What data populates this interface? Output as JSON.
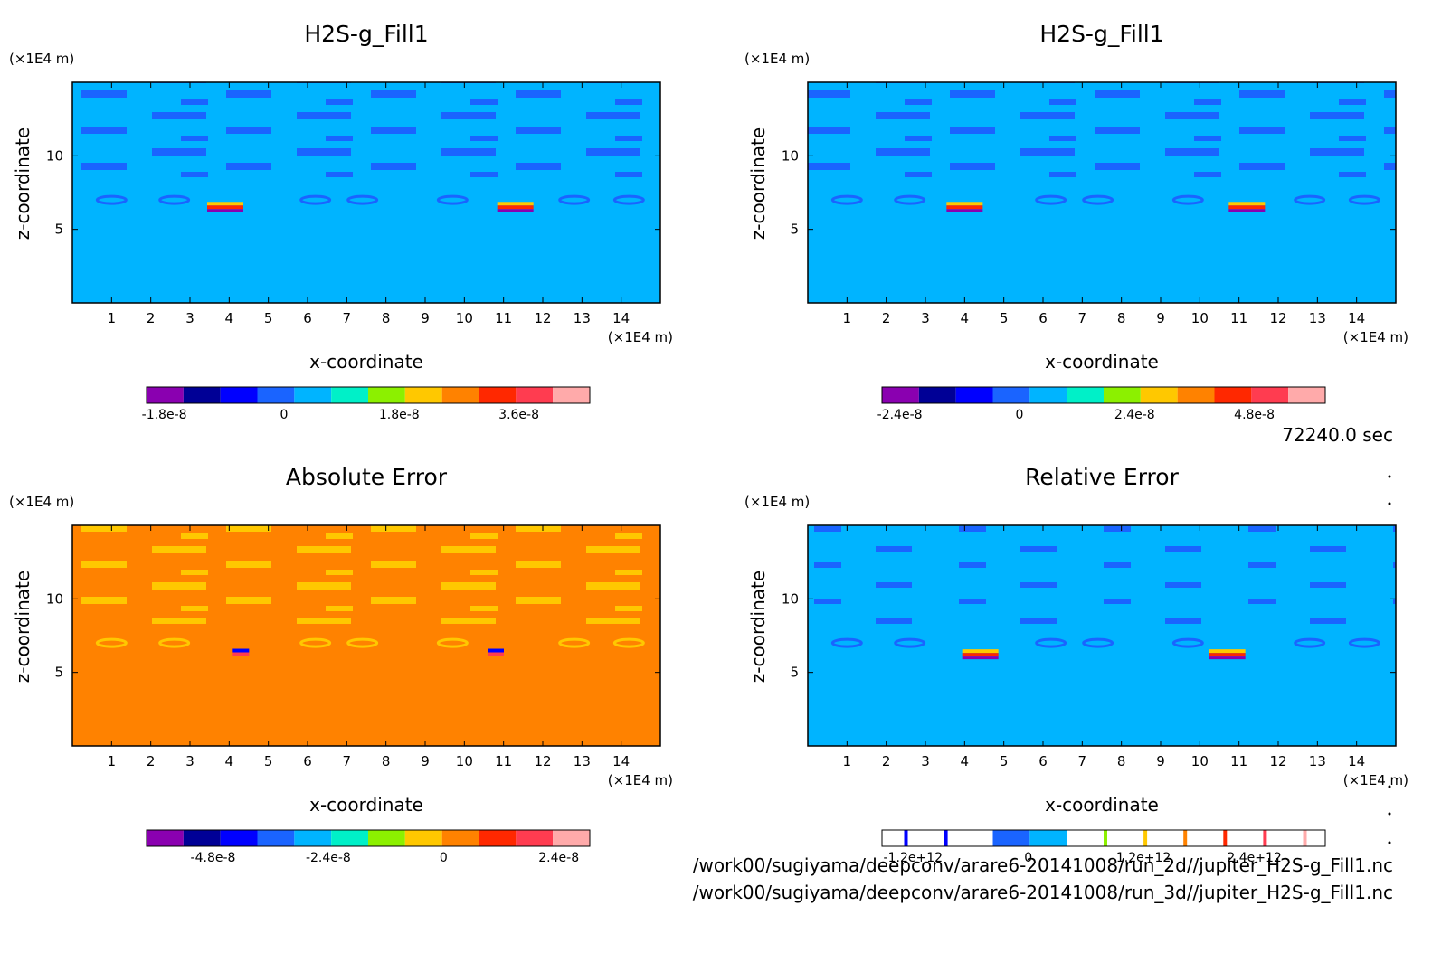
{
  "time_label": "72240.0 sec",
  "file_paths": [
    "/work00/sugiyama/deepconv/arare6-20141008/run_2d//jupiter_H2S-g_Fill1.nc",
    "/work00/sugiyama/deepconv/arare6-20141008/run_3d//jupiter_H2S-g_Fill1.nc"
  ],
  "chart_data": [
    {
      "type": "heatmap",
      "title": "H2S-g_Fill1",
      "xlabel": "x-coordinate",
      "ylabel": "z-coordinate",
      "x_unit": "(×1E4 m)",
      "y_unit": "(×1E4 m)",
      "xlim": [
        0,
        15
      ],
      "ylim": [
        0,
        15
      ],
      "x_ticks": [
        "1",
        "2",
        "3",
        "4",
        "5",
        "6",
        "7",
        "8",
        "9",
        "10",
        "11",
        "12",
        "13",
        "14"
      ],
      "y_ticks": [
        "5",
        "10"
      ],
      "background_level": "light-blue",
      "colorbar": {
        "colors": [
          "#8a00b0",
          "#000096",
          "#0000ff",
          "#1a64ff",
          "#00b4ff",
          "#00f0c8",
          "#8cf000",
          "#ffc800",
          "#ff8200",
          "#ff2800",
          "#ff3c50",
          "#ffaaaa"
        ],
        "tick_labels": [
          "-1.8e-8",
          "0",
          "1.8e-8",
          "3.6e-8"
        ]
      },
      "features": [
        {
          "x": 3.9,
          "z": 6.5,
          "kind": "hot-spot"
        },
        {
          "x": 11.3,
          "z": 6.5,
          "kind": "hot-spot"
        }
      ]
    },
    {
      "type": "heatmap",
      "title": "H2S-g_Fill1",
      "xlabel": "x-coordinate",
      "ylabel": "z-coordinate",
      "x_unit": "(×1E4 m)",
      "y_unit": "(×1E4 m)",
      "xlim": [
        0,
        15
      ],
      "ylim": [
        0,
        15
      ],
      "x_ticks": [
        "1",
        "2",
        "3",
        "4",
        "5",
        "6",
        "7",
        "8",
        "9",
        "10",
        "11",
        "12",
        "13",
        "14"
      ],
      "y_ticks": [
        "5",
        "10"
      ],
      "background_level": "light-blue",
      "colorbar": {
        "colors": [
          "#8a00b0",
          "#000096",
          "#0000ff",
          "#1a64ff",
          "#00b4ff",
          "#00f0c8",
          "#8cf000",
          "#ffc800",
          "#ff8200",
          "#ff2800",
          "#ff3c50",
          "#ffaaaa"
        ],
        "tick_labels": [
          "-2.4e-8",
          "0",
          "2.4e-8",
          "4.8e-8"
        ]
      },
      "features": [
        {
          "x": 4.0,
          "z": 6.5,
          "kind": "hot-spot"
        },
        {
          "x": 11.2,
          "z": 6.5,
          "kind": "hot-spot"
        }
      ]
    },
    {
      "type": "heatmap",
      "title": "Absolute Error",
      "xlabel": "x-coordinate",
      "ylabel": "z-coordinate",
      "x_unit": "(×1E4 m)",
      "y_unit": "(×1E4 m)",
      "xlim": [
        0,
        15
      ],
      "ylim": [
        0,
        15
      ],
      "x_ticks": [
        "1",
        "2",
        "3",
        "4",
        "5",
        "6",
        "7",
        "8",
        "9",
        "10",
        "11",
        "12",
        "13",
        "14"
      ],
      "y_ticks": [
        "5",
        "10"
      ],
      "background_level": "orange",
      "colorbar": {
        "colors": [
          "#8a00b0",
          "#000096",
          "#0000ff",
          "#1a64ff",
          "#00b4ff",
          "#00f0c8",
          "#8cf000",
          "#ffc800",
          "#ff8200",
          "#ff2800",
          "#ff3c50",
          "#ffaaaa"
        ],
        "tick_labels": [
          "-4.8e-8",
          "-2.4e-8",
          "0",
          "2.4e-8"
        ]
      },
      "features": [
        {
          "x": 4.3,
          "z": 6.3,
          "kind": "dipole"
        },
        {
          "x": 10.8,
          "z": 6.3,
          "kind": "dipole"
        }
      ]
    },
    {
      "type": "heatmap",
      "title": "Relative Error",
      "xlabel": "x-coordinate",
      "ylabel": "z-coordinate",
      "x_unit": "(×1E4 m)",
      "y_unit": "(×1E4 m)",
      "xlim": [
        0,
        15
      ],
      "ylim": [
        0,
        15
      ],
      "x_ticks": [
        "1",
        "2",
        "3",
        "4",
        "5",
        "6",
        "7",
        "8",
        "9",
        "10",
        "11",
        "12",
        "13",
        "14"
      ],
      "y_ticks": [
        "5",
        "10"
      ],
      "background_level": "light-blue",
      "colorbar": {
        "colors": [
          "#ffffff",
          "#ffffff",
          "#ffffff",
          "#1a64ff",
          "#00b4ff",
          "#ffffff",
          "#ffffff",
          "#ffffff",
          "#ffffff",
          "#ffffff",
          "#ffffff",
          "#ffffff"
        ],
        "tick_labels": [
          "-1.2e+12",
          "0",
          "1.2e+12",
          "2.4e+12"
        ]
      },
      "features": [
        {
          "x": 4.4,
          "z": 6.2,
          "kind": "hot-spot"
        },
        {
          "x": 10.7,
          "z": 6.2,
          "kind": "hot-spot"
        }
      ]
    }
  ]
}
